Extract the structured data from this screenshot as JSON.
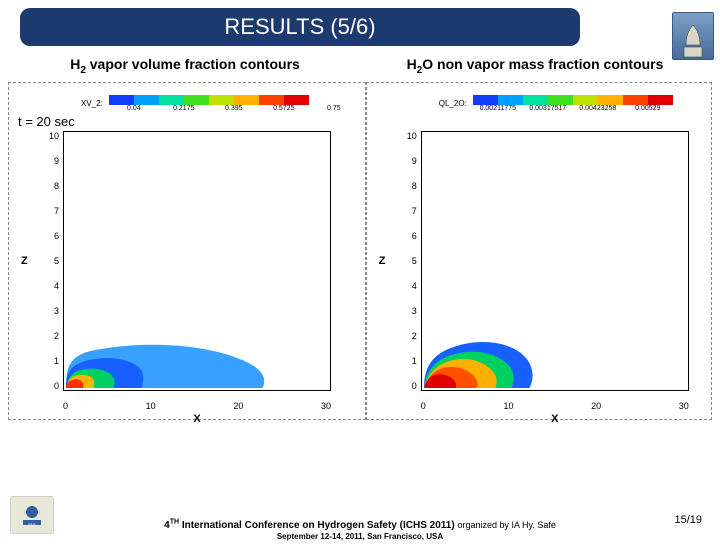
{
  "title": "RESULTS (5/6)",
  "left_subtitle_pre": "H",
  "left_subtitle_sub": "2",
  "left_subtitle_post": " vapor volume fraction contours",
  "right_subtitle_pre": "H",
  "right_subtitle_sub": "2",
  "right_subtitle_post": "O non vapor mass fraction contours",
  "time_label": "t = 20 sec",
  "left_chart": {
    "legend_label": "XV_2:",
    "legend_ticks": [
      "0.04",
      "0.2175",
      "0.395",
      "0.5725",
      "0.75"
    ],
    "legend_colors": [
      "#143cff",
      "#00a0ff",
      "#00e0a0",
      "#40e020",
      "#c0e000",
      "#ffb000",
      "#ff4000",
      "#e00000"
    ],
    "xlabel": "X",
    "ylabel": "Z",
    "xticks": [
      "0",
      "10",
      "20",
      "30"
    ],
    "yticks": [
      "0",
      "1",
      "2",
      "3",
      "4",
      "5",
      "6",
      "7",
      "8",
      "9",
      "10"
    ],
    "xlim": [
      0,
      33
    ],
    "ylim": [
      0,
      10.5
    ]
  },
  "right_chart": {
    "legend_label": "QL_2O:",
    "legend_ticks": [
      "0.00211775",
      "0.00317517",
      "0.00423258",
      "0.00529"
    ],
    "legend_colors": [
      "#143cff",
      "#00a0ff",
      "#00e0a0",
      "#40e020",
      "#c0e000",
      "#ffb000",
      "#ff4000",
      "#e00000"
    ],
    "xlabel": "X",
    "ylabel": "Z",
    "xticks": [
      "0",
      "10",
      "20",
      "30"
    ],
    "yticks": [
      "0",
      "1",
      "2",
      "3",
      "4",
      "5",
      "6",
      "7",
      "8",
      "9",
      "10"
    ],
    "xlim": [
      0,
      33
    ],
    "ylim": [
      0,
      10.5
    ]
  },
  "footer_conf": "4",
  "footer_sup": "TH",
  "footer_conf2": " International Conference on Hydrogen Safety (ICHS 2011) ",
  "footer_org": "organized by IA Hy. Safe",
  "footer_date": "September 12-14, 2011, San Francisco, USA",
  "page_num": "15/19"
}
